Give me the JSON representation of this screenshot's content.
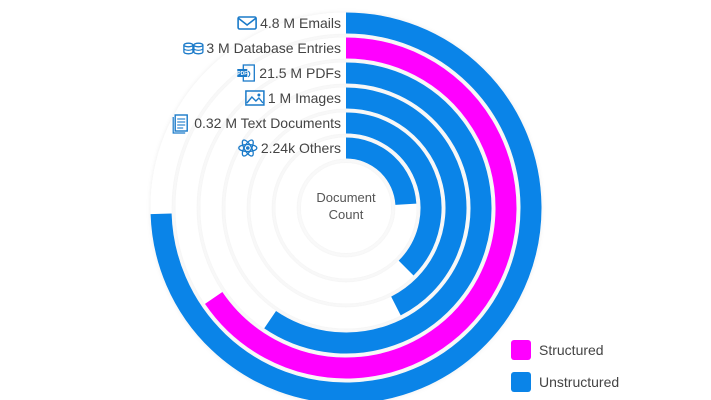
{
  "chart_data": {
    "type": "radial-bar",
    "center_label": "Document\nCount",
    "categories": [
      {
        "label": "4.8 M Emails",
        "type": "Unstructured",
        "icon": "email-icon"
      },
      {
        "label": "3 M Database Entries",
        "type": "Structured",
        "icon": "database-icon"
      },
      {
        "label": "21.5 M PDFs",
        "type": "Unstructured",
        "icon": "pdf-icon"
      },
      {
        "label": "1 M Images",
        "type": "Unstructured",
        "icon": "image-icon"
      },
      {
        "label": "0.32 M Text Documents",
        "type": "Unstructured",
        "icon": "text-document-icon"
      },
      {
        "label": "2.24k Others",
        "type": "Unstructured",
        "icon": "atom-icon"
      }
    ],
    "arc_fraction": [
      0.745,
      0.655,
      0.595,
      0.425,
      0.375,
      0.24
    ],
    "legend": [
      {
        "label": "Structured",
        "color": "#ff00ff"
      },
      {
        "label": "Unstructured",
        "color": "#0a84e8"
      }
    ],
    "colors": {
      "Structured": "#ff00ff",
      "Unstructured": "#0a84e8",
      "label_text": "#444444",
      "icon": "#1a7ac9",
      "track": "#ffffff"
    }
  }
}
